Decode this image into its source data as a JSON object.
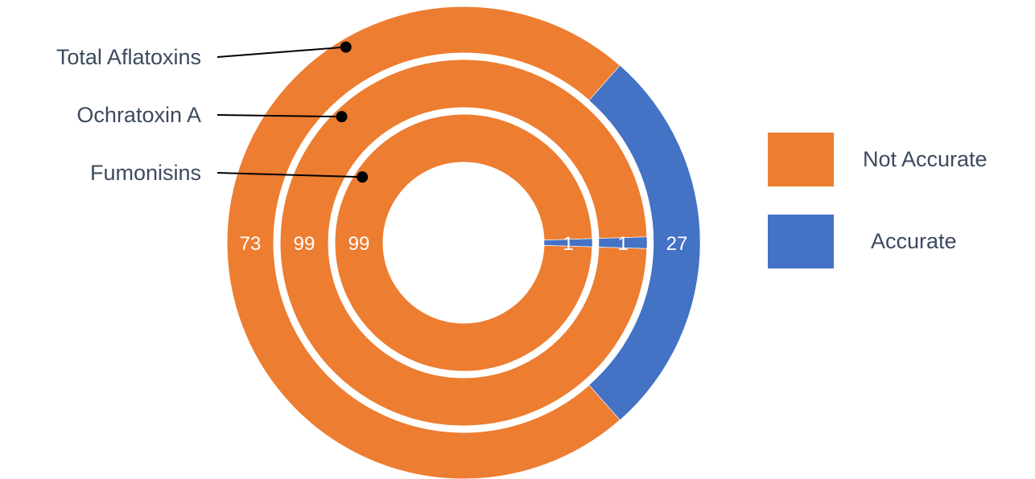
{
  "chart_data": {
    "type": "pie",
    "subtype": "multi-ring donut",
    "series": [
      {
        "name": "Total Aflatoxins",
        "values": {
          "Not Accurate": 73,
          "Accurate": 27
        }
      },
      {
        "name": "Ochratoxin A",
        "values": {
          "Not Accurate": 99,
          "Accurate": 1
        }
      },
      {
        "name": "Fumonisins",
        "values": {
          "Not Accurate": 99,
          "Accurate": 1
        }
      }
    ],
    "categories": [
      "Not Accurate",
      "Accurate"
    ],
    "colors": {
      "Not Accurate": "#ED7D31",
      "Accurate": "#4472C4"
    },
    "legend": {
      "placement": "right",
      "items": [
        {
          "label": "Not Accurate",
          "color": "#ED7D31"
        },
        {
          "label": "Accurate",
          "color": "#4472C4"
        }
      ]
    },
    "ring_order": "outer-to-inner"
  }
}
